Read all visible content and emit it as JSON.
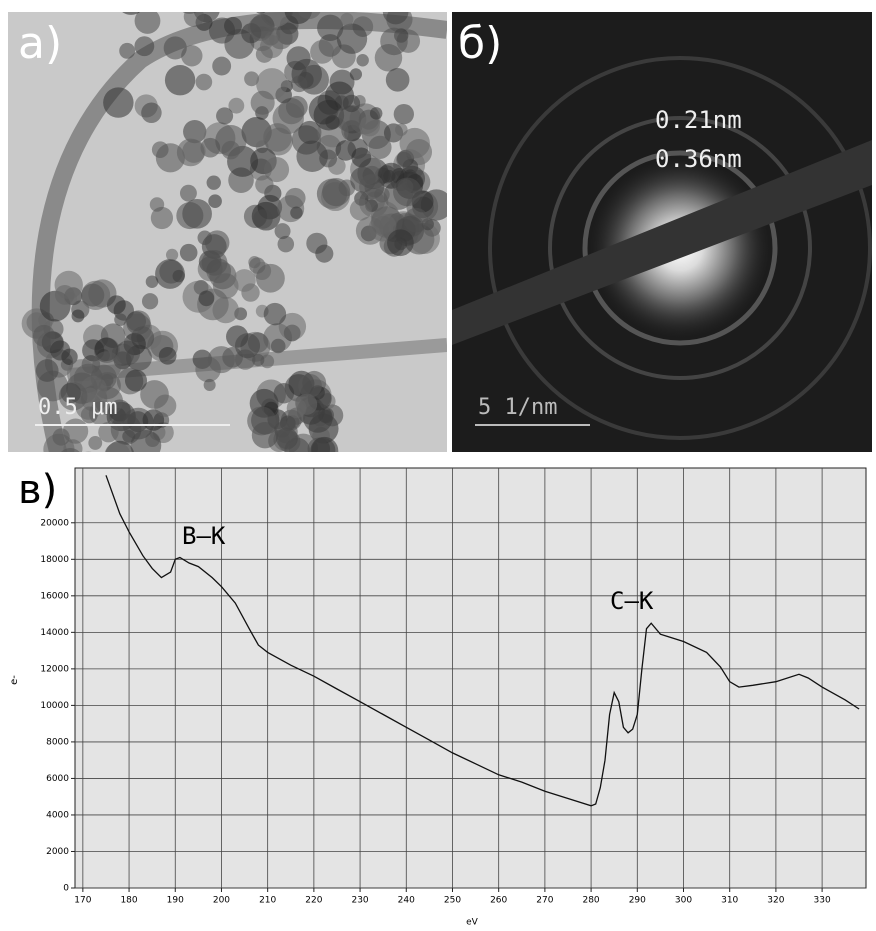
{
  "panels": [
    {
      "label": "а)",
      "scale_bar": "0.5 μm"
    },
    {
      "label": "б)",
      "scale_bar": "5 1/nm",
      "rings": [
        "0.21nm",
        "0.36nm"
      ]
    }
  ],
  "chart_data": {
    "type": "line",
    "label": "в)",
    "xlabel": "eV",
    "ylabel": "e-",
    "x": [
      175,
      178,
      180,
      183,
      185,
      187,
      189,
      190,
      191,
      193,
      195,
      198,
      200,
      203,
      206,
      208,
      210,
      215,
      220,
      225,
      230,
      235,
      240,
      245,
      250,
      255,
      260,
      265,
      270,
      275,
      280,
      281,
      282,
      283,
      284,
      285,
      286,
      287,
      288,
      289,
      290,
      291,
      292,
      293,
      295,
      300,
      305,
      308,
      310,
      312,
      315,
      320,
      325,
      327,
      330,
      335,
      338
    ],
    "values": [
      22600,
      20500,
      19500,
      18200,
      17500,
      17000,
      17300,
      18000,
      18100,
      17800,
      17600,
      17000,
      16500,
      15600,
      14200,
      13300,
      12900,
      12200,
      11600,
      10900,
      10200,
      9500,
      8800,
      8100,
      7400,
      6800,
      6200,
      5800,
      5300,
      4900,
      4500,
      4600,
      5500,
      7000,
      9500,
      10700,
      10200,
      8800,
      8500,
      8700,
      9500,
      12000,
      14200,
      14500,
      13900,
      13500,
      12900,
      12100,
      11300,
      11000,
      11100,
      11300,
      11700,
      11500,
      11000,
      10300,
      9800
    ],
    "color": "#111111",
    "xlim": [
      168.3,
      339.5
    ],
    "ylim": [
      0,
      23000
    ],
    "xticks": [
      170,
      180,
      190,
      200,
      210,
      220,
      230,
      240,
      250,
      260,
      270,
      280,
      290,
      300,
      310,
      320,
      330
    ],
    "yticks": [
      0,
      2000,
      4000,
      6000,
      8000,
      10000,
      12000,
      14000,
      16000,
      18000,
      20000
    ],
    "grid": true,
    "annotations": [
      "B–K",
      "C–K"
    ]
  }
}
